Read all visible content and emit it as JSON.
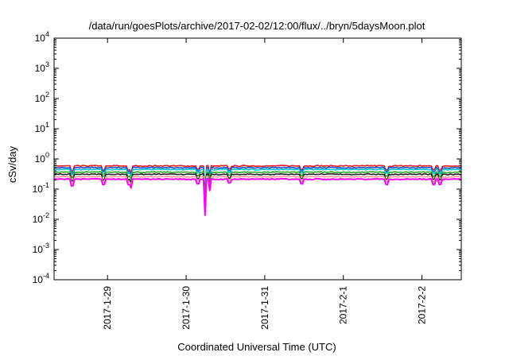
{
  "chart_data": {
    "type": "line",
    "title": "/data/run/goesPlots/archive/2017-02-02/12:00/flux/../bryn/5daysMoon.plot",
    "xlabel": "Coordinated Universal Time (UTC)",
    "ylabel": "cSv/day",
    "y_scale": "log",
    "ylim": [
      0.0001,
      10000
    ],
    "xlim": [
      -0.68,
      4.5
    ],
    "x_ticks": [
      {
        "value": 0,
        "label": "2017-1-29"
      },
      {
        "value": 1,
        "label": "2017-1-30"
      },
      {
        "value": 2,
        "label": "2017-1-31"
      },
      {
        "value": 3,
        "label": "2017-2-1"
      },
      {
        "value": 4,
        "label": "2017-2-2"
      }
    ],
    "y_ticks": [
      {
        "value": 0.0001,
        "base": "10",
        "exp": "-4"
      },
      {
        "value": 0.001,
        "base": "10",
        "exp": "-3"
      },
      {
        "value": 0.01,
        "base": "10",
        "exp": "-2"
      },
      {
        "value": 0.1,
        "base": "10",
        "exp": "-1"
      },
      {
        "value": 1,
        "base": "10",
        "exp": "0"
      },
      {
        "value": 10,
        "base": "10",
        "exp": "1"
      },
      {
        "value": 100,
        "base": "10",
        "exp": "2"
      },
      {
        "value": 1000,
        "base": "10",
        "exp": "3"
      },
      {
        "value": 10000,
        "base": "10",
        "exp": "4"
      }
    ],
    "grid": false,
    "series": [
      {
        "color": "#e41a1c",
        "baseline": 0.55
      },
      {
        "color": "#1f4fd8",
        "baseline": 0.48
      },
      {
        "color": "#00c0d0",
        "baseline": 0.42
      },
      {
        "color": "#22aa22",
        "baseline": 0.34
      },
      {
        "color": "#222222",
        "baseline": 0.29
      },
      {
        "color": "#ff9999",
        "baseline": 0.24
      },
      {
        "color": "#ff00ff",
        "baseline": 0.2
      }
    ],
    "dips": [
      {
        "x": -0.45,
        "depth": 0.35
      },
      {
        "x": -0.05,
        "depth": 0.45
      },
      {
        "x": 0.27,
        "depth": 0.45
      },
      {
        "x": 0.3,
        "depth": 0.6
      },
      {
        "x": 1.15,
        "depth": 0.55
      },
      {
        "x": 1.24,
        "depth": 0.12
      },
      {
        "x": 1.3,
        "depth": 0.5
      },
      {
        "x": 1.55,
        "depth": 0.6
      },
      {
        "x": 2.47,
        "depth": 0.55
      },
      {
        "x": 3.55,
        "depth": 0.5
      },
      {
        "x": 4.15,
        "depth": 0.5
      },
      {
        "x": 4.23,
        "depth": 0.45
      }
    ]
  }
}
